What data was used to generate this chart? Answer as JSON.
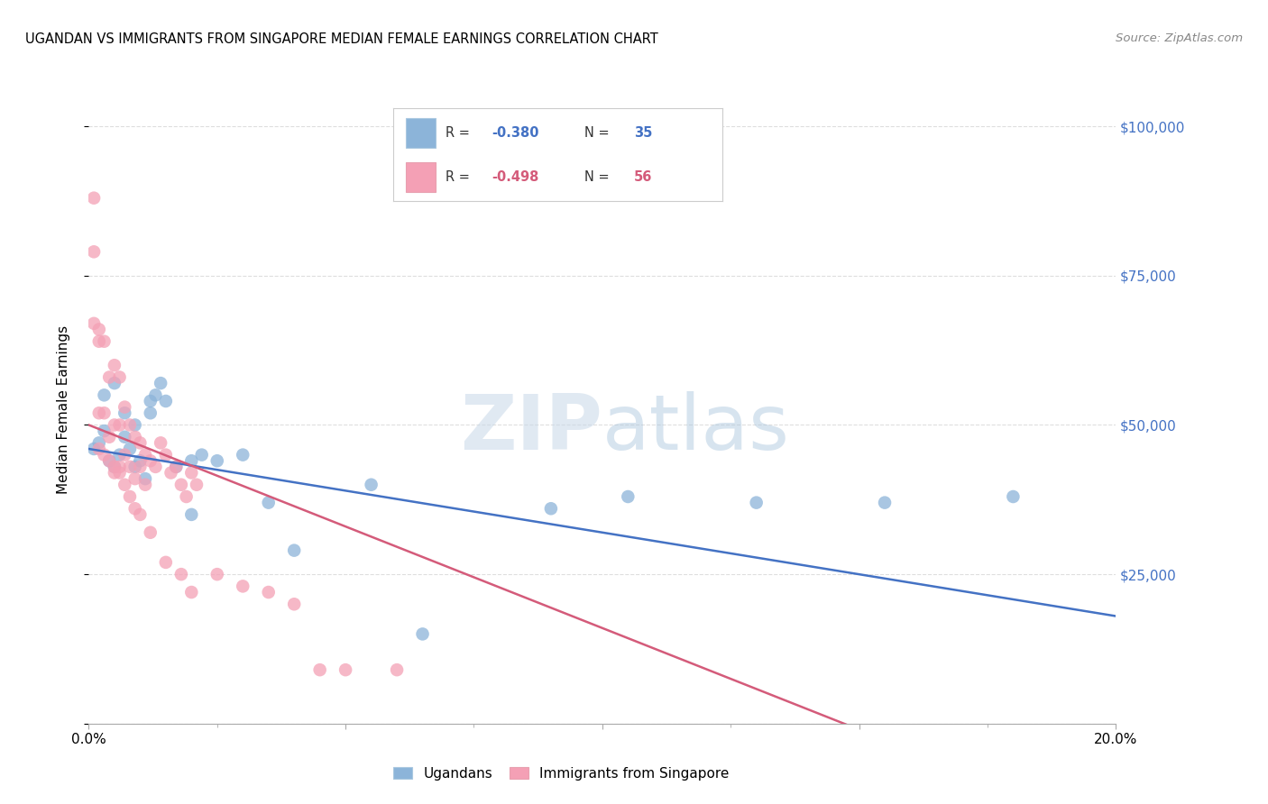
{
  "title": "UGANDAN VS IMMIGRANTS FROM SINGAPORE MEDIAN FEMALE EARNINGS CORRELATION CHART",
  "source": "Source: ZipAtlas.com",
  "ylabel": "Median Female Earnings",
  "xlim": [
    0,
    0.2
  ],
  "ylim": [
    0,
    105000
  ],
  "yticks": [
    0,
    25000,
    50000,
    75000,
    100000
  ],
  "xticks": [
    0.0,
    0.05,
    0.1,
    0.15,
    0.2
  ],
  "xtick_labels": [
    "0.0%",
    "",
    "",
    "",
    "20.0%"
  ],
  "grid_color": "#dedede",
  "bg_color": "#ffffff",
  "blue_color": "#8cb4d9",
  "pink_color": "#f4a0b5",
  "blue_line_color": "#4472c4",
  "pink_line_color": "#d45b7a",
  "legend_label1": "Ugandans",
  "legend_label2": "Immigrants from Singapore",
  "ugandan_x": [
    0.001,
    0.002,
    0.003,
    0.004,
    0.005,
    0.006,
    0.007,
    0.008,
    0.009,
    0.01,
    0.011,
    0.012,
    0.013,
    0.014,
    0.015,
    0.017,
    0.02,
    0.022,
    0.025,
    0.03,
    0.035,
    0.04,
    0.055,
    0.065,
    0.09,
    0.105,
    0.13,
    0.155,
    0.18,
    0.003,
    0.005,
    0.007,
    0.009,
    0.012,
    0.02
  ],
  "ugandan_y": [
    46000,
    47000,
    49000,
    44000,
    43000,
    45000,
    48000,
    46000,
    43000,
    44000,
    41000,
    52000,
    55000,
    57000,
    54000,
    43000,
    35000,
    45000,
    44000,
    45000,
    37000,
    29000,
    40000,
    15000,
    36000,
    38000,
    37000,
    37000,
    38000,
    55000,
    57000,
    52000,
    50000,
    54000,
    44000
  ],
  "singapore_x": [
    0.001,
    0.001,
    0.001,
    0.002,
    0.002,
    0.002,
    0.003,
    0.003,
    0.004,
    0.004,
    0.005,
    0.005,
    0.005,
    0.006,
    0.006,
    0.006,
    0.007,
    0.007,
    0.008,
    0.008,
    0.009,
    0.009,
    0.01,
    0.01,
    0.011,
    0.011,
    0.012,
    0.013,
    0.014,
    0.015,
    0.016,
    0.017,
    0.018,
    0.019,
    0.02,
    0.021,
    0.002,
    0.003,
    0.004,
    0.005,
    0.006,
    0.007,
    0.008,
    0.009,
    0.01,
    0.012,
    0.015,
    0.018,
    0.02,
    0.025,
    0.03,
    0.035,
    0.04,
    0.045,
    0.05,
    0.06
  ],
  "singapore_y": [
    88000,
    79000,
    67000,
    66000,
    64000,
    52000,
    64000,
    52000,
    58000,
    48000,
    60000,
    50000,
    42000,
    58000,
    50000,
    43000,
    53000,
    45000,
    50000,
    43000,
    48000,
    41000,
    47000,
    43000,
    45000,
    40000,
    44000,
    43000,
    47000,
    45000,
    42000,
    43000,
    40000,
    38000,
    42000,
    40000,
    46000,
    45000,
    44000,
    43000,
    42000,
    40000,
    38000,
    36000,
    35000,
    32000,
    27000,
    25000,
    22000,
    25000,
    23000,
    22000,
    20000,
    9000,
    9000,
    9000
  ]
}
